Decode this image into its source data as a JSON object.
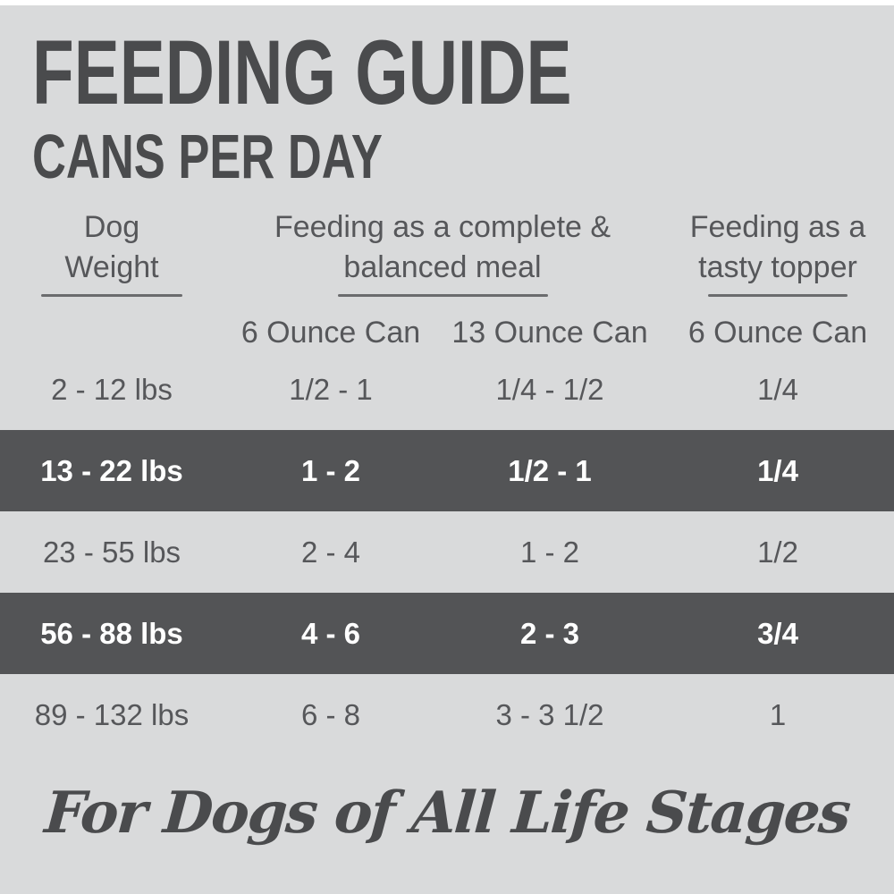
{
  "page": {
    "title": "FEEDING GUIDE",
    "subtitle": "CANS PER DAY",
    "footer_tagline": "For Dogs of All Life Stages"
  },
  "table": {
    "column_groups": [
      {
        "line1": "Dog",
        "line2": "Weight"
      },
      {
        "line1": "Feeding as a complete &",
        "line2": "balanced meal"
      },
      {
        "line1": "Feeding as a",
        "line2": "tasty topper"
      }
    ],
    "sub_headers": [
      "6 Ounce Can",
      "13 Ounce Can",
      "6 Ounce Can"
    ],
    "rows": [
      {
        "weight": "2 - 12 lbs",
        "meal_6oz": "1/2 - 1",
        "meal_13oz": "1/4 - 1/2",
        "topper_6oz": "1/4",
        "highlighted": false
      },
      {
        "weight": "13 - 22 lbs",
        "meal_6oz": "1 - 2",
        "meal_13oz": "1/2 - 1",
        "topper_6oz": "1/4",
        "highlighted": true
      },
      {
        "weight": "23 - 55 lbs",
        "meal_6oz": "2 - 4",
        "meal_13oz": "1 - 2",
        "topper_6oz": "1/2",
        "highlighted": false
      },
      {
        "weight": "56 - 88 lbs",
        "meal_6oz": "4 - 6",
        "meal_13oz": "2 - 3",
        "topper_6oz": "3/4",
        "highlighted": true
      },
      {
        "weight": "89 - 132 lbs",
        "meal_6oz": "6 - 8",
        "meal_13oz": "3 - 3 1/2",
        "topper_6oz": "1",
        "highlighted": false
      }
    ]
  },
  "colors": {
    "background": "#d9dadb",
    "top_edge": "#ffffff",
    "heading_text": "#4a4b4d",
    "body_text": "#56575a",
    "highlight_row_background": "#535456",
    "highlight_row_text": "#ffffff",
    "underline": "#6b6c6e"
  }
}
